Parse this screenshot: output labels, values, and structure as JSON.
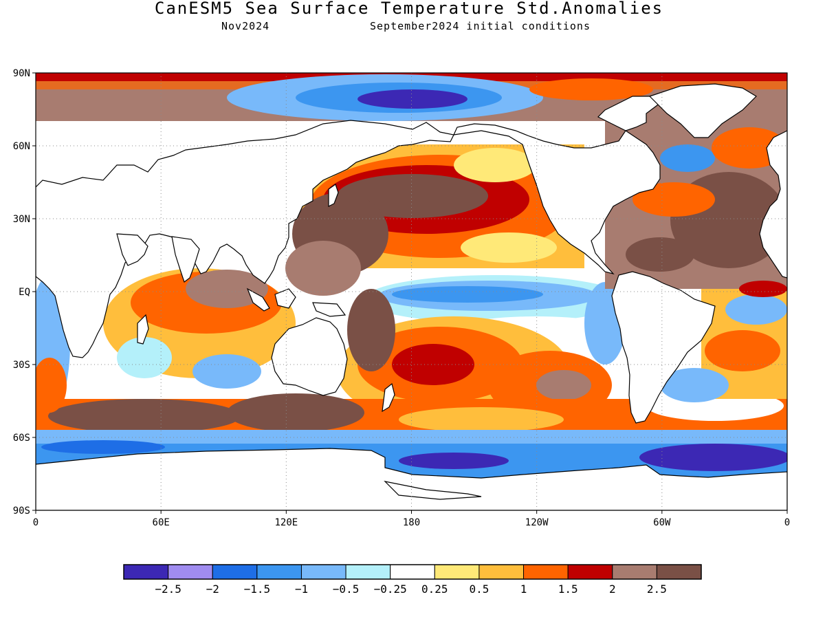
{
  "title": "CanESM5 Sea Surface Temperature Std.Anomalies",
  "subtitle_left": "Nov2024",
  "subtitle_right": "September2024 initial conditions",
  "colors": {
    "ocean_neutral": "#ffffff",
    "land": "#ffffff",
    "coast": "#000000"
  },
  "map": {
    "projection": "equirectangular",
    "lon_range": [
      0,
      360
    ],
    "lat_range": [
      -90,
      90
    ],
    "grid": true,
    "lat_ticks": [
      "90N",
      "60N",
      "30N",
      "EQ",
      "30S",
      "60S",
      "90S"
    ],
    "lon_ticks": [
      "0",
      "60E",
      "120E",
      "180",
      "120W",
      "60W",
      "0"
    ]
  },
  "colorbar": {
    "colors": [
      "#3c28b4",
      "#a08cf0",
      "#1e6ee6",
      "#3c96f0",
      "#78b9fa",
      "#b4f0fa",
      "#ffffff",
      "#ffe978",
      "#ffbe3c",
      "#ff6400",
      "#c00000",
      "#a87c70",
      "#7a5046"
    ],
    "labels": [
      "-2.5",
      "-2",
      "-1.5",
      "-1",
      "-0.5",
      "-0.25",
      "0.25",
      "0.5",
      "1",
      "1.5",
      "2",
      "2.5"
    ]
  }
}
